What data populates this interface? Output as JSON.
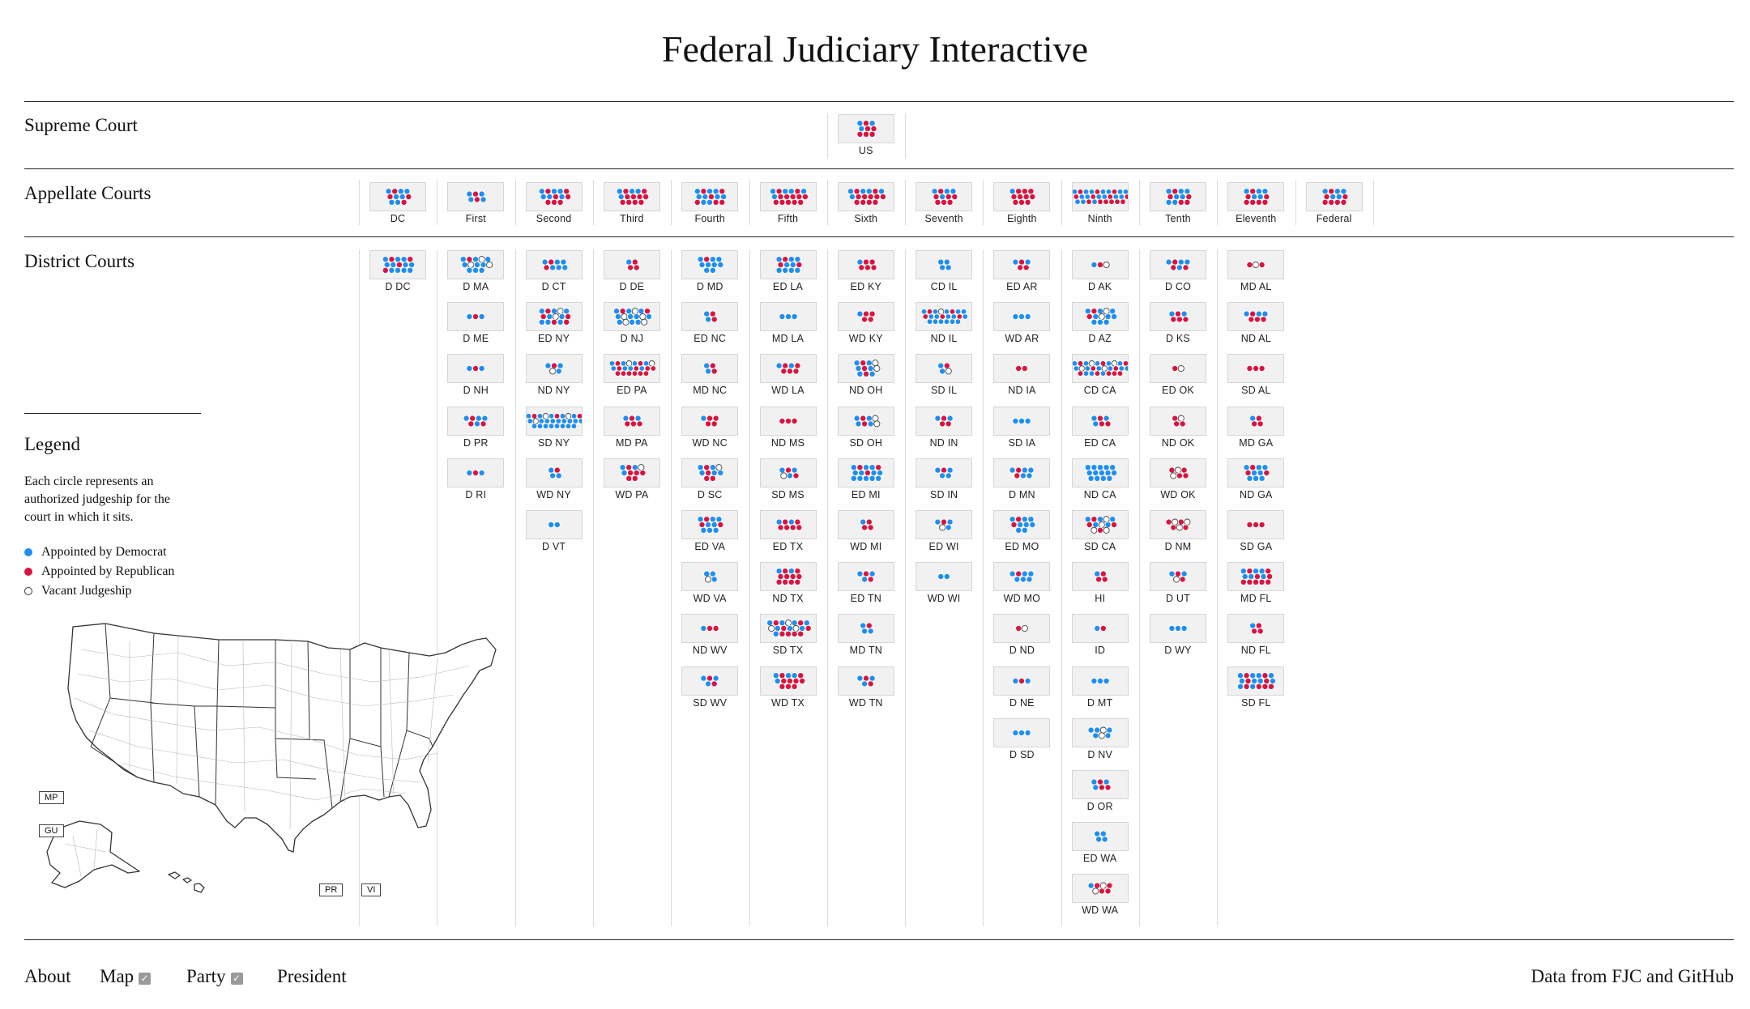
{
  "title": "Federal Judiciary Interactive",
  "rows": {
    "supreme": "Supreme Court",
    "appellate": "Appellate Courts",
    "district": "District Courts"
  },
  "colors": {
    "democrat": "#1f8ef0",
    "republican": "#d9143f",
    "vacant": "#ffffff"
  },
  "legend": {
    "title": "Legend",
    "description": "Each circle represents an authorized judgeship for the court in which it sits.",
    "items": [
      {
        "label": "Appointed by Democrat",
        "type": "democrat"
      },
      {
        "label": "Appointed by Republican",
        "type": "republican"
      },
      {
        "label": "Vacant Judgeship",
        "type": "vacant"
      }
    ]
  },
  "territories": [
    "MP",
    "GU",
    "PR",
    "VI"
  ],
  "footer": {
    "about": "About",
    "map": "Map",
    "map_checked": true,
    "party": "Party",
    "party_checked": true,
    "president": "President",
    "source": "Data from FJC and GitHub"
  },
  "supreme_court": {
    "name": "US",
    "d": 3,
    "r": 6,
    "v": 0
  },
  "circuits": [
    {
      "name": "DC",
      "appellate": {
        "d": 7,
        "r": 4,
        "v": 0
      },
      "districts": [
        {
          "name": "D DC",
          "d": 11,
          "r": 4,
          "v": 0
        }
      ]
    },
    {
      "name": "First",
      "appellate": {
        "d": 4,
        "r": 2,
        "v": 0
      },
      "districts": [
        {
          "name": "D MA",
          "d": 9,
          "r": 1,
          "v": 3
        },
        {
          "name": "D ME",
          "d": 2,
          "r": 1,
          "v": 0
        },
        {
          "name": "D NH",
          "d": 2,
          "r": 1,
          "v": 0
        },
        {
          "name": "D PR",
          "d": 4,
          "r": 3,
          "v": 0
        },
        {
          "name": "D RI",
          "d": 2,
          "r": 1,
          "v": 0
        }
      ]
    },
    {
      "name": "Second",
      "appellate": {
        "d": 6,
        "r": 7,
        "v": 0
      },
      "districts": [
        {
          "name": "D CT",
          "d": 6,
          "r": 2,
          "v": 0
        },
        {
          "name": "ED NY",
          "d": 8,
          "r": 5,
          "v": 2
        },
        {
          "name": "ND NY",
          "d": 3,
          "r": 1,
          "v": 1
        },
        {
          "name": "SD NY",
          "d": 22,
          "r": 3,
          "v": 3
        },
        {
          "name": "WD NY",
          "d": 3,
          "r": 1,
          "v": 0
        },
        {
          "name": "D VT",
          "d": 2,
          "r": 0,
          "v": 0
        }
      ]
    },
    {
      "name": "Third",
      "appellate": {
        "d": 4,
        "r": 10,
        "v": 0
      },
      "districts": [
        {
          "name": "D DE",
          "d": 1,
          "r": 3,
          "v": 0
        },
        {
          "name": "D NJ",
          "d": 10,
          "r": 2,
          "v": 5
        },
        {
          "name": "ED PA",
          "d": 8,
          "r": 12,
          "v": 2
        },
        {
          "name": "MD PA",
          "d": 2,
          "r": 4,
          "v": 0
        },
        {
          "name": "WD PA",
          "d": 3,
          "r": 6,
          "v": 1
        }
      ]
    },
    {
      "name": "Fourth",
      "appellate": {
        "d": 9,
        "r": 6,
        "v": 0
      },
      "districts": [
        {
          "name": "D MD",
          "d": 9,
          "r": 1,
          "v": 0
        },
        {
          "name": "ED NC",
          "d": 2,
          "r": 2,
          "v": 0
        },
        {
          "name": "MD NC",
          "d": 2,
          "r": 2,
          "v": 0
        },
        {
          "name": "WD NC",
          "d": 1,
          "r": 4,
          "v": 0
        },
        {
          "name": "D SC",
          "d": 5,
          "r": 4,
          "v": 1
        },
        {
          "name": "ED VA",
          "d": 8,
          "r": 3,
          "v": 0
        },
        {
          "name": "WD VA",
          "d": 3,
          "r": 0,
          "v": 1
        },
        {
          "name": "ND WV",
          "d": 1,
          "r": 2,
          "v": 0
        },
        {
          "name": "SD WV",
          "d": 3,
          "r": 2,
          "v": 0
        }
      ]
    },
    {
      "name": "Fifth",
      "appellate": {
        "d": 5,
        "r": 12,
        "v": 0
      },
      "districts": [
        {
          "name": "ED LA",
          "d": 9,
          "r": 3,
          "v": 0
        },
        {
          "name": "MD LA",
          "d": 3,
          "r": 0,
          "v": 0
        },
        {
          "name": "WD LA",
          "d": 2,
          "r": 5,
          "v": 0
        },
        {
          "name": "ND MS",
          "d": 0,
          "r": 3,
          "v": 0
        },
        {
          "name": "SD MS",
          "d": 3,
          "r": 2,
          "v": 1
        },
        {
          "name": "ED TX",
          "d": 2,
          "r": 6,
          "v": 0
        },
        {
          "name": "ND TX",
          "d": 2,
          "r": 10,
          "v": 0
        },
        {
          "name": "SD TX",
          "d": 8,
          "r": 8,
          "v": 3
        },
        {
          "name": "WD TX",
          "d": 4,
          "r": 9,
          "v": 0
        }
      ]
    },
    {
      "name": "Sixth",
      "appellate": {
        "d": 5,
        "r": 11,
        "v": 0
      },
      "districts": [
        {
          "name": "ED KY",
          "d": 1,
          "r": 5,
          "v": 0
        },
        {
          "name": "WD KY",
          "d": 1,
          "r": 4,
          "v": 0
        },
        {
          "name": "ND OH",
          "d": 6,
          "r": 3,
          "v": 2
        },
        {
          "name": "SD OH",
          "d": 4,
          "r": 2,
          "v": 2
        },
        {
          "name": "ED MI",
          "d": 12,
          "r": 3,
          "v": 0
        },
        {
          "name": "WD MI",
          "d": 1,
          "r": 3,
          "v": 0
        },
        {
          "name": "ED TN",
          "d": 3,
          "r": 2,
          "v": 0
        },
        {
          "name": "MD TN",
          "d": 3,
          "r": 1,
          "v": 0
        },
        {
          "name": "WD TN",
          "d": 3,
          "r": 2,
          "v": 0
        }
      ]
    },
    {
      "name": "Seventh",
      "appellate": {
        "d": 4,
        "r": 7,
        "v": 0
      },
      "districts": [
        {
          "name": "CD IL",
          "d": 4,
          "r": 0,
          "v": 0
        },
        {
          "name": "ND IL",
          "d": 16,
          "r": 5,
          "v": 1
        },
        {
          "name": "SD IL",
          "d": 2,
          "r": 1,
          "v": 1
        },
        {
          "name": "ND IN",
          "d": 2,
          "r": 3,
          "v": 0
        },
        {
          "name": "SD IN",
          "d": 4,
          "r": 1,
          "v": 0
        },
        {
          "name": "ED WI",
          "d": 3,
          "r": 1,
          "v": 1
        },
        {
          "name": "WD WI",
          "d": 2,
          "r": 0,
          "v": 0
        }
      ]
    },
    {
      "name": "Eighth",
      "appellate": {
        "d": 1,
        "r": 10,
        "v": 0
      },
      "districts": [
        {
          "name": "ED AR",
          "d": 2,
          "r": 3,
          "v": 0
        },
        {
          "name": "WD AR",
          "d": 3,
          "r": 0,
          "v": 0
        },
        {
          "name": "ND IA",
          "d": 0,
          "r": 2,
          "v": 0
        },
        {
          "name": "SD IA",
          "d": 3,
          "r": 0,
          "v": 0
        },
        {
          "name": "D MN",
          "d": 5,
          "r": 2,
          "v": 0
        },
        {
          "name": "ED MO",
          "d": 8,
          "r": 2,
          "v": 0
        },
        {
          "name": "WD MO",
          "d": 6,
          "r": 1,
          "v": 0
        },
        {
          "name": "D ND",
          "d": 0,
          "r": 1,
          "v": 1
        },
        {
          "name": "D NE",
          "d": 2,
          "r": 1,
          "v": 0
        },
        {
          "name": "D SD",
          "d": 3,
          "r": 0,
          "v": 0
        }
      ]
    },
    {
      "name": "Ninth",
      "appellate": {
        "d": 16,
        "r": 13,
        "v": 0
      },
      "districts": [
        {
          "name": "D AK",
          "d": 1,
          "r": 1,
          "v": 1
        },
        {
          "name": "D AZ",
          "d": 9,
          "r": 2,
          "v": 2
        },
        {
          "name": "CD CA",
          "d": 14,
          "r": 10,
          "v": 4
        },
        {
          "name": "ED CA",
          "d": 3,
          "r": 3,
          "v": 0
        },
        {
          "name": "ND CA",
          "d": 14,
          "r": 0,
          "v": 0
        },
        {
          "name": "SD CA",
          "d": 5,
          "r": 4,
          "v": 4
        },
        {
          "name": "HI",
          "d": 1,
          "r": 3,
          "v": 0
        },
        {
          "name": "ID",
          "d": 1,
          "r": 1,
          "v": 0
        },
        {
          "name": "D MT",
          "d": 3,
          "r": 0,
          "v": 0
        },
        {
          "name": "D NV",
          "d": 5,
          "r": 0,
          "v": 2
        },
        {
          "name": "D OR",
          "d": 3,
          "r": 3,
          "v": 0
        },
        {
          "name": "ED WA",
          "d": 4,
          "r": 0,
          "v": 0
        },
        {
          "name": "WD WA",
          "d": 1,
          "r": 4,
          "v": 2
        }
      ]
    },
    {
      "name": "Tenth",
      "appellate": {
        "d": 7,
        "r": 5,
        "v": 0
      },
      "districts": [
        {
          "name": "D CO",
          "d": 4,
          "r": 3,
          "v": 0
        },
        {
          "name": "D KS",
          "d": 2,
          "r": 4,
          "v": 0
        },
        {
          "name": "ED OK",
          "d": 0,
          "r": 1,
          "v": 1
        },
        {
          "name": "ND OK",
          "d": 0,
          "r": 3,
          "v": 1
        },
        {
          "name": "WD OK",
          "d": 0,
          "r": 4,
          "v": 2
        },
        {
          "name": "D NM",
          "d": 0,
          "r": 4,
          "v": 3
        },
        {
          "name": "D UT",
          "d": 2,
          "r": 2,
          "v": 1
        },
        {
          "name": "D WY",
          "d": 3,
          "r": 0,
          "v": 0
        }
      ]
    },
    {
      "name": "Eleventh",
      "appellate": {
        "d": 5,
        "r": 7,
        "v": 0
      },
      "districts": [
        {
          "name": "MD AL",
          "d": 0,
          "r": 2,
          "v": 1
        },
        {
          "name": "ND AL",
          "d": 3,
          "r": 4,
          "v": 0
        },
        {
          "name": "SD AL",
          "d": 0,
          "r": 3,
          "v": 0
        },
        {
          "name": "MD GA",
          "d": 1,
          "r": 3,
          "v": 0
        },
        {
          "name": "ND GA",
          "d": 8,
          "r": 3,
          "v": 0
        },
        {
          "name": "SD GA",
          "d": 0,
          "r": 3,
          "v": 0
        },
        {
          "name": "MD FL",
          "d": 6,
          "r": 9,
          "v": 0
        },
        {
          "name": "ND FL",
          "d": 1,
          "r": 3,
          "v": 0
        },
        {
          "name": "SD FL",
          "d": 10,
          "r": 8,
          "v": 0
        }
      ]
    },
    {
      "name": "Federal",
      "appellate": {
        "d": 5,
        "r": 7,
        "v": 0
      },
      "districts": []
    }
  ]
}
